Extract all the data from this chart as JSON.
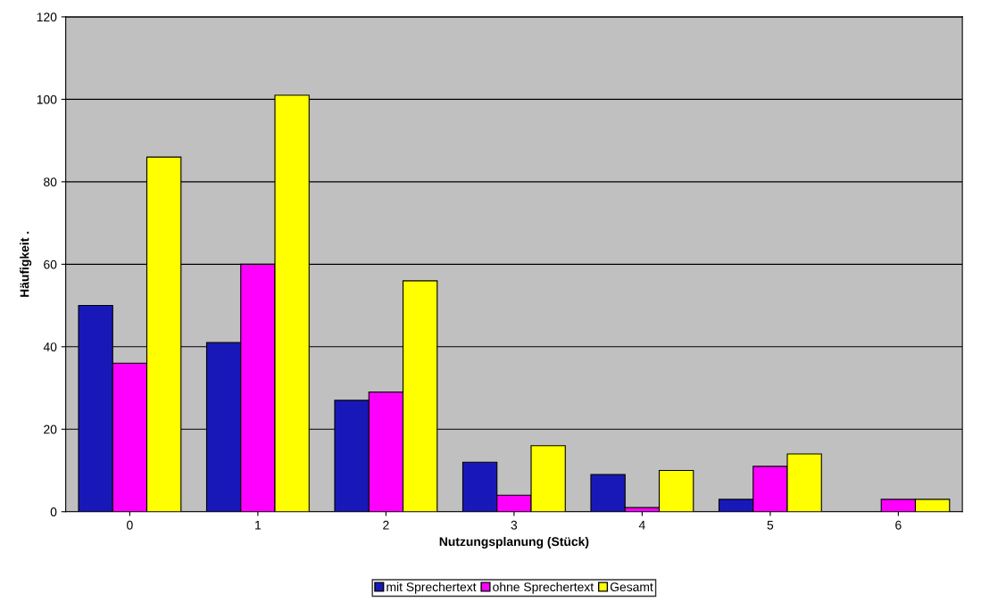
{
  "chart_data": {
    "type": "bar",
    "xlabel": "Nutzungsplanung (Stück)",
    "ylabel": "Häufigkeit .",
    "categories": [
      "0",
      "1",
      "2",
      "3",
      "4",
      "5",
      "6"
    ],
    "series": [
      {
        "name": "mit Sprechertext",
        "color": "#1818b8",
        "values": [
          50,
          41,
          27,
          12,
          9,
          3,
          null
        ]
      },
      {
        "name": "ohne Sprechertext",
        "color": "#ff00ff",
        "values": [
          36,
          60,
          29,
          4,
          1,
          11,
          3
        ]
      },
      {
        "name": "Gesamt",
        "color": "#ffff00",
        "values": [
          86,
          101,
          56,
          16,
          10,
          14,
          3
        ]
      }
    ],
    "ylim": [
      0,
      120
    ],
    "yticks": [
      0,
      20,
      40,
      60,
      80,
      100,
      120
    ],
    "grid": "y",
    "legend": "bottom"
  }
}
